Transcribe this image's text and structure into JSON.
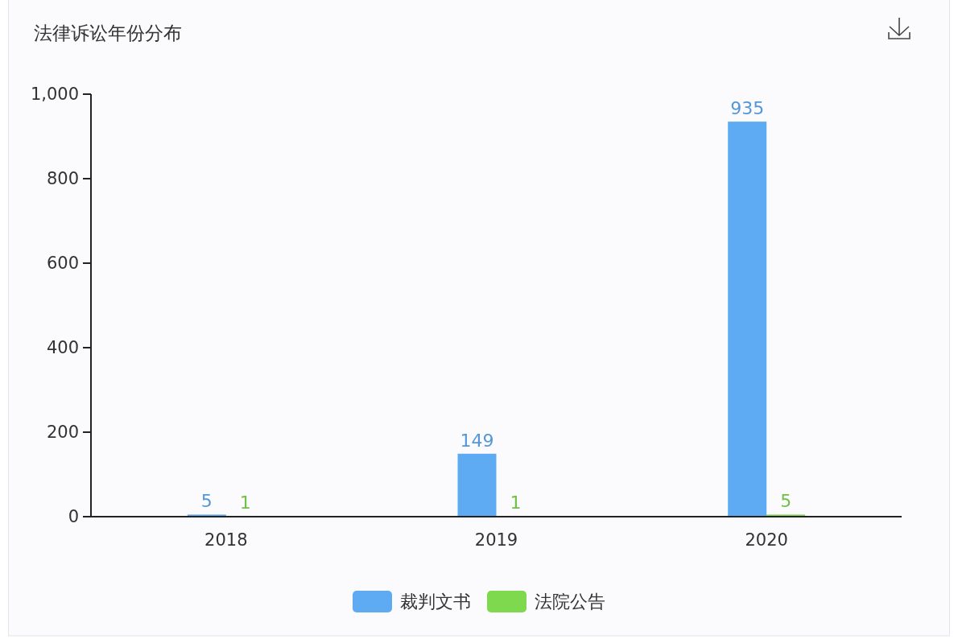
{
  "chart_data": {
    "type": "bar",
    "title": "法律诉讼年份分布",
    "categories": [
      "2018",
      "2019",
      "2020"
    ],
    "series": [
      {
        "name": "裁判文书",
        "color": "#5eabf4",
        "values": [
          5,
          149,
          935
        ]
      },
      {
        "name": "法院公告",
        "color": "#7ed94e",
        "values": [
          1,
          1,
          5
        ]
      }
    ],
    "ylim": [
      0,
      1000
    ],
    "yticks": [
      0,
      200,
      400,
      600,
      800,
      {
        "value": 1000,
        "label": "1,000"
      }
    ],
    "grid": false,
    "legend": "bottom",
    "data_labels": true
  }
}
